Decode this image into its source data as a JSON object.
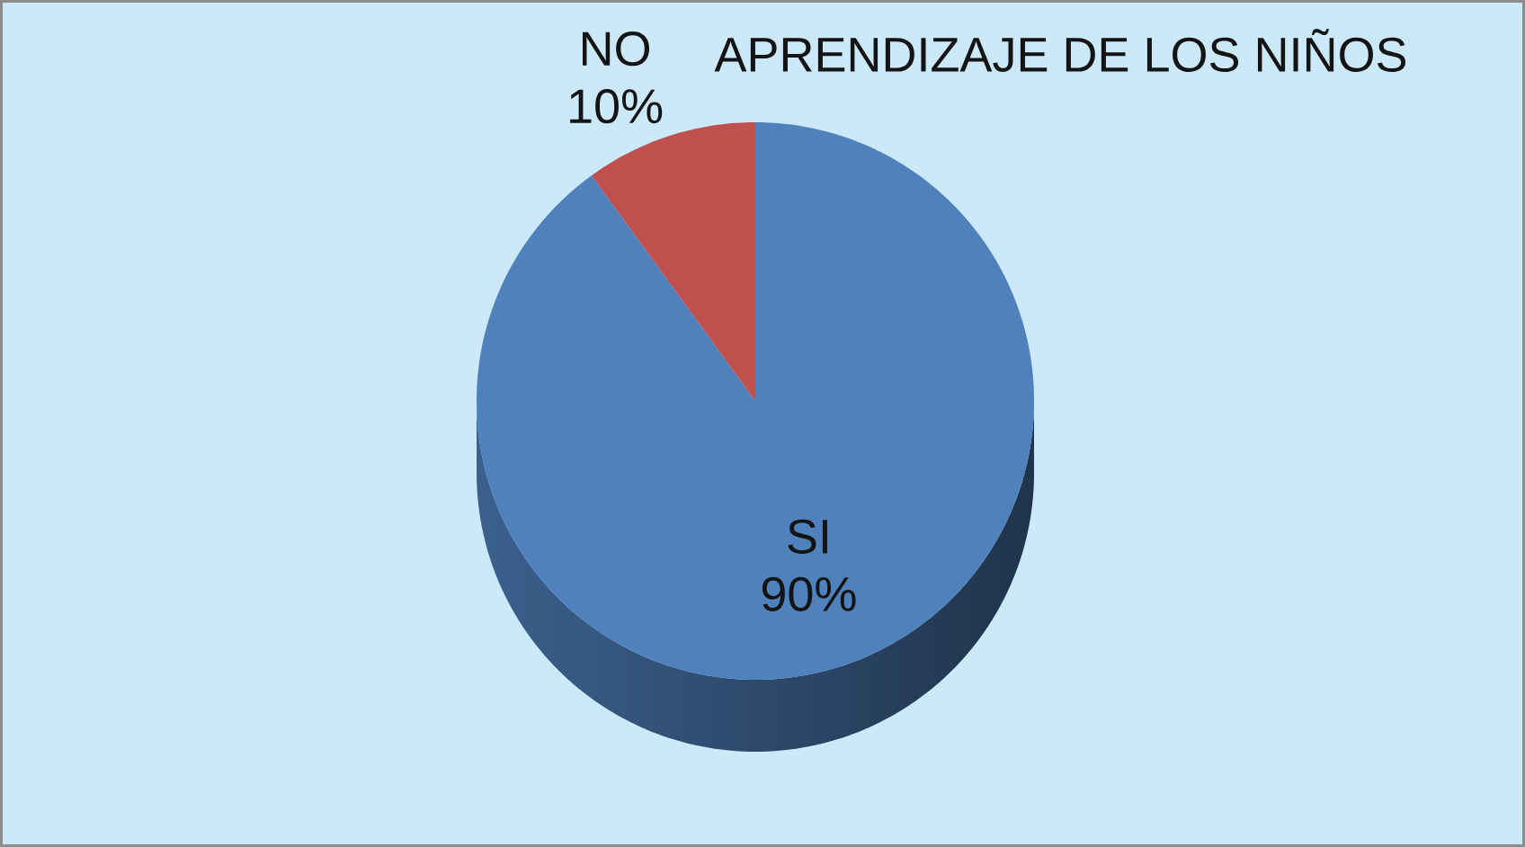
{
  "chart_data": {
    "type": "pie",
    "title": "APRENDIZAJE DE LOS NIÑOS",
    "categories": [
      "SI",
      "NO"
    ],
    "values": [
      90,
      10
    ],
    "colors": [
      "#4f81bd",
      "#c0504d"
    ],
    "value_labels": [
      "90%",
      "10%"
    ]
  }
}
